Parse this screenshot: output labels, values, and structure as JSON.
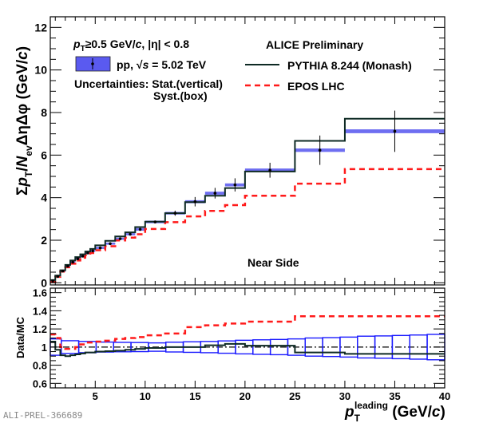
{
  "chart_data": [
    {
      "type": "line",
      "panel": "main",
      "ylabel": {
        "sigma": "Σ",
        "p": "p",
        "T": "T",
        "slash": "/",
        "N": "N",
        "ev": "ev",
        "rest": "ΔηΔφ (GeV/",
        "c": "c",
        "close": ")"
      },
      "xlim": [
        0.5,
        40
      ],
      "ylim": [
        -0.1,
        12.5
      ],
      "x_ticks": [
        5,
        10,
        15,
        20,
        25,
        30,
        35,
        40
      ],
      "y_ticks": [
        "0",
        "2",
        "4",
        "6",
        "8",
        "10",
        "12"
      ],
      "bin_edges": [
        0.5,
        1,
        1.5,
        2,
        2.5,
        3,
        3.5,
        4,
        4.5,
        5,
        6,
        7,
        8,
        9,
        10,
        12,
        14,
        16,
        18,
        20,
        25,
        30,
        40
      ],
      "series": [
        {
          "name": "pp, √s = 5.02 TeV",
          "kind": "data",
          "values": [
            0.09,
            0.3,
            0.55,
            0.78,
            0.97,
            1.13,
            1.25,
            1.4,
            1.5,
            1.64,
            1.84,
            2.07,
            2.28,
            2.51,
            2.86,
            3.27,
            3.81,
            4.21,
            4.6,
            5.29,
            6.23,
            7.12
          ],
          "stat": [
            0.02,
            0.02,
            0.02,
            0.02,
            0.02,
            0.02,
            0.03,
            0.03,
            0.03,
            0.03,
            0.04,
            0.04,
            0.05,
            0.06,
            0.06,
            0.12,
            0.22,
            0.25,
            0.31,
            0.35,
            0.69,
            0.97
          ],
          "syst": [
            0.01,
            0.02,
            0.03,
            0.04,
            0.04,
            0.05,
            0.05,
            0.05,
            0.05,
            0.05,
            0.05,
            0.05,
            0.05,
            0.06,
            0.06,
            0.06,
            0.07,
            0.07,
            0.07,
            0.08,
            0.08,
            0.09
          ],
          "color": "#5555ee"
        },
        {
          "name": "PYTHIA 8.244 (Monash)",
          "kind": "solid",
          "values": [
            0.13,
            0.34,
            0.59,
            0.84,
            1.05,
            1.21,
            1.34,
            1.47,
            1.59,
            1.76,
            1.97,
            2.18,
            2.37,
            2.62,
            2.87,
            3.27,
            3.79,
            4.09,
            4.45,
            5.23,
            6.67,
            7.71
          ],
          "color": "#0e2a24"
        },
        {
          "name": "EPOS LHC",
          "kind": "dashed",
          "values": [
            0.05,
            0.28,
            0.53,
            0.73,
            0.9,
            1.05,
            1.18,
            1.3,
            1.4,
            1.53,
            1.72,
            1.99,
            2.12,
            2.28,
            2.53,
            2.85,
            3.12,
            3.38,
            3.65,
            4.09,
            4.66,
            5.34
          ],
          "color": "#ff1a1a"
        }
      ]
    },
    {
      "type": "line",
      "panel": "ratio",
      "ylabel": "Data/MC",
      "xlabel": {
        "p": "p",
        "T": "T",
        "sup": "leading",
        "rest": " (GeV/",
        "c": "c",
        "close": ")"
      },
      "xlim": [
        0.5,
        40
      ],
      "ylim": [
        0.55,
        1.65
      ],
      "x_ticks": [
        "5",
        "10",
        "15",
        "20",
        "25",
        "30",
        "35",
        "40"
      ],
      "y_ticks": [
        "0.6",
        "0.8",
        "1",
        "1.2",
        "1.4",
        "1.6"
      ],
      "reference_line": 1,
      "bin_edges": [
        0.5,
        1,
        1.5,
        2,
        2.5,
        3,
        3.5,
        4,
        4.5,
        5,
        6,
        7,
        8,
        9,
        10,
        12,
        14,
        16,
        18,
        20,
        25,
        30,
        40
      ],
      "series": [
        {
          "name": "PYTHIA 8.244 (Monash)",
          "values": [
            1.06,
            0.97,
            0.91,
            0.9,
            0.91,
            0.92,
            0.93,
            0.94,
            0.94,
            0.95,
            0.955,
            0.96,
            0.97,
            0.98,
            0.99,
            1.0,
            1.0,
            1.02,
            1.035,
            1.015,
            0.94,
            0.925
          ],
          "color": "#0e2a24"
        },
        {
          "name": "EPOS LHC",
          "values": [
            1.14,
            1.1,
            1.0,
            0.98,
            0.98,
            1.0,
            1.03,
            1.05,
            1.05,
            1.06,
            1.07,
            1.09,
            1.1,
            1.11,
            1.13,
            1.15,
            1.22,
            1.24,
            1.26,
            1.28,
            1.34,
            1.34
          ],
          "color": "#ff1a1a"
        }
      ],
      "syst_boxes": {
        "edges": [
          0.5,
          1.6,
          3.345,
          5.09,
          6.835,
          8.58,
          10.325,
          12.07,
          13.815,
          15.56,
          17.305,
          19.05,
          20.795,
          22.54,
          24.285,
          26.03,
          27.775,
          29.52,
          31.265,
          33.01,
          34.755,
          36.5,
          38.245,
          40
        ],
        "half_height": [
          0.09,
          0.07,
          0.062,
          0.055,
          0.052,
          0.05,
          0.046,
          0.054,
          0.058,
          0.062,
          0.068,
          0.075,
          0.08,
          0.084,
          0.09,
          0.1,
          0.104,
          0.11,
          0.12,
          0.123,
          0.128,
          0.133,
          0.14
        ],
        "color": "#1a1aff"
      }
    }
  ],
  "legend": {
    "cut_p": "p",
    "cut_T": "T",
    "cut_rest": "≥0.5 GeV/",
    "cut_c": "c",
    "cut_eta": ", |η| < 0.8",
    "data_label_pp": "pp, ",
    "data_label_sqrt": "√",
    "data_label_s": "s",
    "data_label_energy": " = 5.02 TeV",
    "uncertainties": "Uncertainties: Stat.(vertical)",
    "syst": "Syst.(box)",
    "experiment": "ALICE Preliminary",
    "pythia": "PYTHIA 8.244 (Monash)",
    "epos": "EPOS LHC",
    "region": "Near Side"
  },
  "watermark": "ALI-PREL-366689"
}
